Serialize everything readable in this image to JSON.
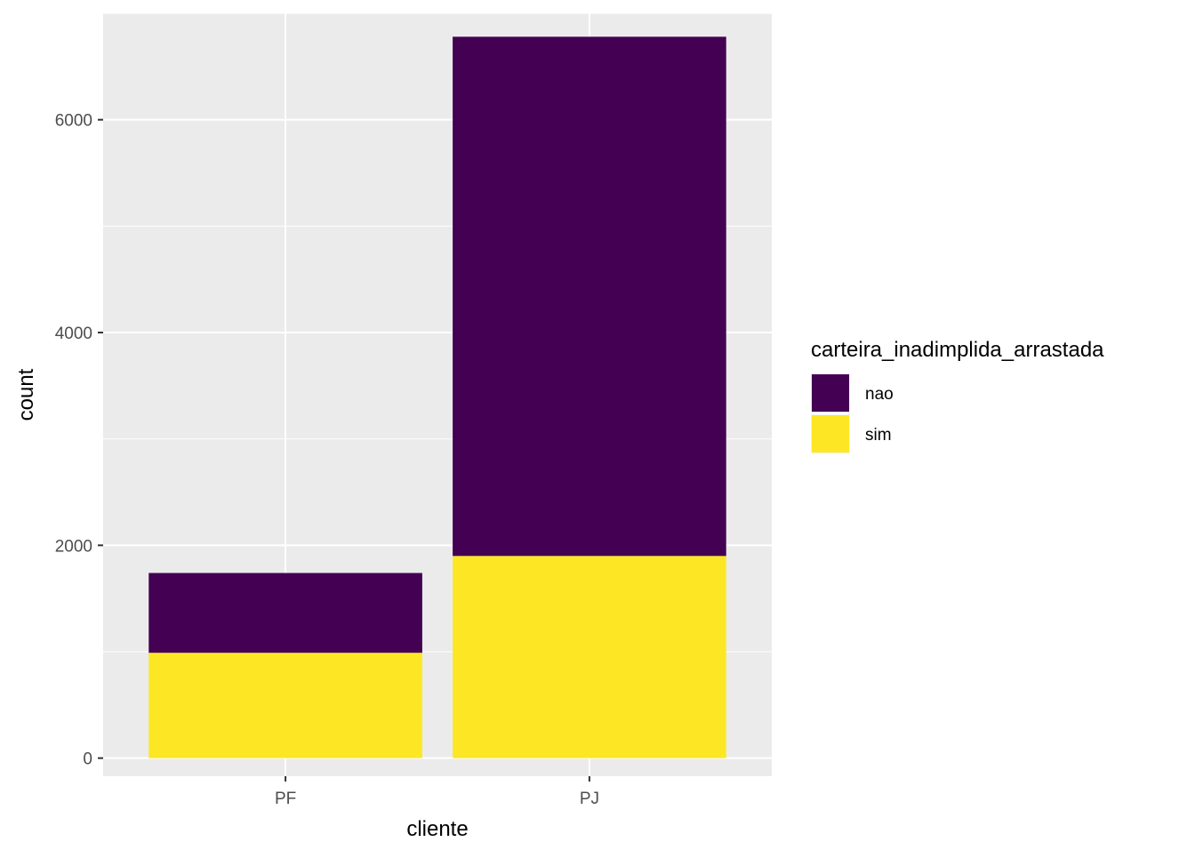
{
  "chart_data": {
    "type": "bar",
    "stacked": true,
    "categories": [
      "PF",
      "PJ"
    ],
    "series": [
      {
        "name": "nao",
        "values": [
          750,
          4880
        ],
        "color": "#440154"
      },
      {
        "name": "sim",
        "values": [
          990,
          1900
        ],
        "color": "#FDE725"
      }
    ],
    "xlabel": "cliente",
    "ylabel": "count",
    "ylim": [
      -170,
      7000
    ],
    "yticks": [
      0,
      2000,
      4000,
      6000
    ],
    "ytick_labels": [
      "0",
      "2000",
      "4000",
      "6000"
    ],
    "grid": true,
    "panel_background": "#EBEBEB",
    "grid_color": "#FFFFFF",
    "legend": {
      "title": "carteira_inadimplida_arrastada",
      "position": "right"
    }
  }
}
